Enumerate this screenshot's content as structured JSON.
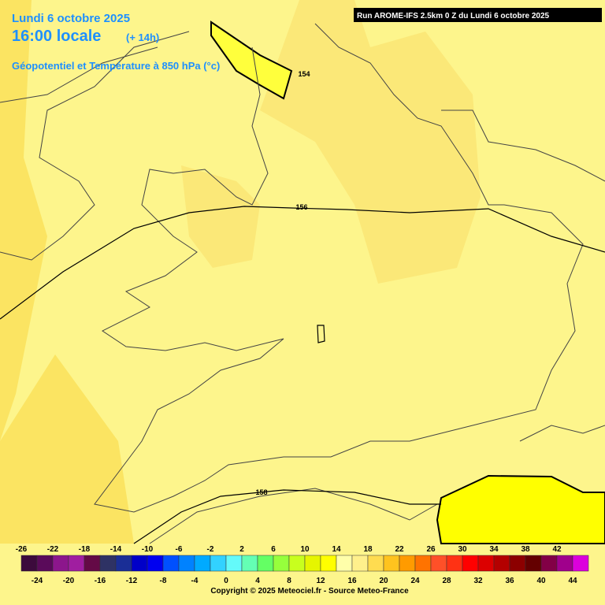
{
  "header": {
    "date": "Lundi 6 octobre 2025",
    "time": "16:00 locale",
    "lead": "(+ 14h)",
    "parameter": "Géopotentiel et Température à 850 hPa (°c)",
    "run": "Run AROME-IFS 2.5km 0 Z du Lundi 6 octobre 2025"
  },
  "contour_labels": [
    "154",
    "156",
    "158"
  ],
  "colorbar": {
    "top_labels": [
      -26,
      -22,
      -18,
      -14,
      -10,
      -6,
      -2,
      2,
      6,
      10,
      14,
      18,
      22,
      26,
      30,
      34,
      38,
      42
    ],
    "bottom_labels": [
      -24,
      -20,
      -16,
      -12,
      -8,
      -4,
      0,
      4,
      8,
      12,
      16,
      20,
      24,
      28,
      32,
      36,
      40,
      44
    ],
    "colors": [
      "#3c0a3c",
      "#5a0a5a",
      "#8c168c",
      "#a01ea0",
      "#640a46",
      "#2e3264",
      "#1a2e96",
      "#0000c8",
      "#0000f0",
      "#0050ff",
      "#0082ff",
      "#00aaff",
      "#32d2ff",
      "#64fafa",
      "#64ffb4",
      "#64ff64",
      "#96ff3c",
      "#c8ff1e",
      "#e6f500",
      "#ffff00",
      "#ffffaa",
      "#fff08c",
      "#ffdc50",
      "#ffc31e",
      "#ff9b00",
      "#ff7300",
      "#ff5028",
      "#ff3214",
      "#ff0000",
      "#dc0000",
      "#b40000",
      "#8c0000",
      "#640000",
      "#820046",
      "#a0008c",
      "#dc00dc"
    ]
  },
  "copyright": "Copyright © 2025 Meteociel.fr - Source Meteo-France"
}
